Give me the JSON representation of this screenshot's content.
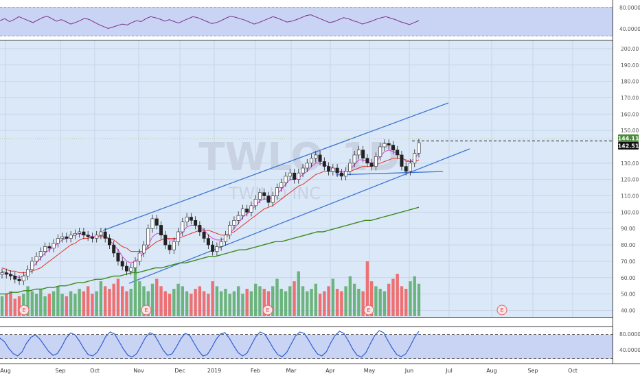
{
  "chart_data": [
    {
      "type": "line",
      "panel": "rsi",
      "y_axis_labels": [
        "80.0000",
        "40.0000"
      ],
      "band": [
        40,
        80
      ],
      "ylim": [
        30,
        90
      ],
      "values": [
        62,
        66,
        60,
        64,
        70,
        66,
        62,
        58,
        63,
        68,
        71,
        66,
        61,
        64,
        60,
        55,
        58,
        62,
        67,
        64,
        59,
        54,
        50,
        46,
        49,
        52,
        55,
        53,
        58,
        62,
        60,
        66,
        70,
        68,
        65,
        61,
        64,
        60,
        57,
        62,
        66,
        70,
        68,
        64,
        60,
        56,
        58,
        62,
        67,
        71,
        69,
        66,
        63,
        59,
        55,
        58,
        62,
        66,
        70,
        67,
        63,
        59,
        61,
        64,
        68,
        72,
        74,
        70,
        66,
        62,
        58,
        60,
        64,
        68,
        66,
        62,
        59,
        55,
        58,
        61,
        65,
        68,
        70,
        67,
        64,
        60,
        57,
        54,
        58,
        62
      ]
    },
    {
      "type": "candlestick",
      "panel": "price",
      "title": "TWLO, 1D",
      "watermark_title": "TWLO",
      "watermark_interval": "1D",
      "watermark_name": "TWILIO INC",
      "price_labels": [
        "200.00",
        "190.00",
        "180.00",
        "170.00",
        "160.00",
        "150.00",
        "130.00",
        "120.00",
        "110.00",
        "100.00",
        "90.00",
        "80.00",
        "70.00",
        "60.00",
        "50.00",
        "40.00"
      ],
      "ylim": [
        36,
        205
      ],
      "last_price": "142.51",
      "prev_high": "144.11",
      "month_labels": [
        "Aug",
        "Sep",
        "Oct",
        "Nov",
        "Dec",
        "2019",
        "Feb",
        "Mar",
        "Apr",
        "May",
        "Jun",
        "Jul",
        "Aug",
        "Sep",
        "Oct"
      ],
      "close": [
        63,
        62,
        61,
        59,
        58,
        61,
        65,
        70,
        73,
        76,
        79,
        78,
        81,
        84,
        85,
        84,
        86,
        87,
        88,
        86,
        85,
        84,
        86,
        88,
        84,
        80,
        75,
        70,
        67,
        64,
        66,
        70,
        75,
        80,
        90,
        96,
        92,
        86,
        80,
        77,
        82,
        88,
        94,
        97,
        95,
        92,
        88,
        84,
        80,
        76,
        79,
        82,
        86,
        92,
        95,
        98,
        102,
        100,
        104,
        108,
        112,
        110,
        106,
        110,
        115,
        118,
        122,
        124,
        120,
        124,
        127,
        130,
        133,
        135,
        131,
        128,
        125,
        127,
        124,
        122,
        125,
        130,
        135,
        138,
        133,
        130,
        128,
        134,
        140,
        142,
        141,
        138,
        135,
        128,
        125,
        130,
        136,
        142.5
      ],
      "ma_short": [
        64,
        63,
        62,
        61,
        60,
        61,
        63,
        66,
        69,
        72,
        75,
        77,
        79,
        81,
        83,
        84,
        85,
        86,
        87,
        86,
        86,
        85,
        85,
        86,
        85,
        83,
        80,
        77,
        73,
        70,
        69,
        70,
        72,
        75,
        80,
        85,
        87,
        87,
        85,
        83,
        83,
        85,
        88,
        91,
        92,
        92,
        91,
        89,
        86,
        84,
        83,
        83,
        84,
        87,
        90,
        93,
        97,
        99,
        101,
        104,
        107,
        108,
        108,
        109,
        111,
        114,
        117,
        120,
        120,
        121,
        123,
        125,
        128,
        130,
        130,
        129,
        128,
        127,
        126,
        124,
        124,
        126,
        129,
        132,
        132,
        131,
        130,
        131,
        134,
        137,
        138,
        137,
        136,
        134,
        131,
        131,
        133,
        136
      ],
      "ma_mid": [
        66,
        65,
        64,
        64,
        63,
        63,
        63,
        64,
        65,
        66,
        68,
        70,
        72,
        74,
        76,
        78,
        80,
        81,
        83,
        84,
        84,
        85,
        85,
        85,
        85,
        84,
        83,
        81,
        79,
        78,
        76,
        76,
        76,
        76,
        78,
        80,
        82,
        83,
        84,
        84,
        84,
        84,
        85,
        86,
        87,
        88,
        89,
        89,
        89,
        88,
        87,
        86,
        86,
        87,
        88,
        90,
        92,
        94,
        96,
        98,
        100,
        102,
        103,
        104,
        106,
        108,
        110,
        112,
        114,
        116,
        117,
        119,
        121,
        123,
        124,
        125,
        125,
        125,
        125,
        125,
        125,
        125,
        126,
        127,
        128,
        128,
        128,
        129,
        130,
        131,
        132,
        133,
        133,
        133,
        132,
        131,
        131,
        132
      ],
      "ma_long": [
        50,
        50,
        51,
        51,
        52,
        52,
        53,
        53,
        54,
        54,
        55,
        55,
        56,
        57,
        57,
        58,
        59,
        59,
        60,
        61,
        61,
        62,
        63,
        63,
        64,
        65,
        66,
        66,
        67,
        68,
        69,
        69,
        70,
        71,
        72,
        73,
        73,
        74,
        75,
        76,
        77,
        77,
        78,
        79,
        80,
        81,
        82,
        82,
        83,
        84,
        85,
        86,
        87,
        88,
        88,
        89,
        90,
        91,
        92,
        93,
        94,
        95,
        95,
        96,
        97,
        98,
        99,
        100,
        101,
        102,
        103
      ]
    },
    {
      "type": "bar",
      "panel": "volume",
      "earnings_label": "E",
      "values": [
        8,
        9,
        10,
        7,
        8,
        9,
        12,
        10,
        9,
        11,
        8,
        9,
        10,
        12,
        9,
        8,
        10,
        9,
        11,
        10,
        12,
        9,
        10,
        14,
        12,
        11,
        13,
        15,
        12,
        10,
        11,
        22,
        14,
        12,
        10,
        13,
        15,
        12,
        10,
        9,
        11,
        13,
        12,
        10,
        9,
        11,
        12,
        10,
        9,
        14,
        12,
        10,
        11,
        9,
        10,
        12,
        9,
        11,
        10,
        13,
        12,
        11,
        10,
        12,
        15,
        11,
        10,
        12,
        14,
        18,
        12,
        10,
        11,
        13,
        9,
        10,
        12,
        15,
        11,
        10,
        12,
        16,
        13,
        11,
        10,
        22,
        14,
        12,
        11,
        10,
        13,
        15,
        17,
        12,
        11,
        14,
        16,
        13
      ]
    },
    {
      "type": "line",
      "panel": "stochastic",
      "y_axis_labels": [
        "80.0000",
        "40.0000"
      ],
      "band": [
        20,
        80
      ],
      "ylim": [
        0,
        100
      ],
      "values": [
        70,
        60,
        40,
        25,
        18,
        30,
        55,
        72,
        80,
        68,
        50,
        32,
        20,
        25,
        45,
        70,
        85,
        80,
        62,
        40,
        22,
        18,
        28,
        50,
        75,
        88,
        82,
        60,
        38,
        20,
        15,
        25,
        48,
        72,
        86,
        80,
        58,
        35,
        20,
        24,
        44,
        68,
        84,
        78,
        56,
        34,
        18,
        22,
        42,
        66,
        82,
        86,
        70,
        48,
        28,
        18,
        26,
        50,
        74,
        88,
        82,
        62,
        40,
        22,
        16,
        28,
        52,
        76,
        88,
        84,
        64,
        42,
        24,
        18,
        30,
        56,
        78,
        90,
        84,
        62,
        38,
        20,
        15,
        28,
        54,
        78,
        92,
        86,
        62,
        40,
        22,
        16,
        24,
        46,
        72,
        90
      ]
    }
  ]
}
